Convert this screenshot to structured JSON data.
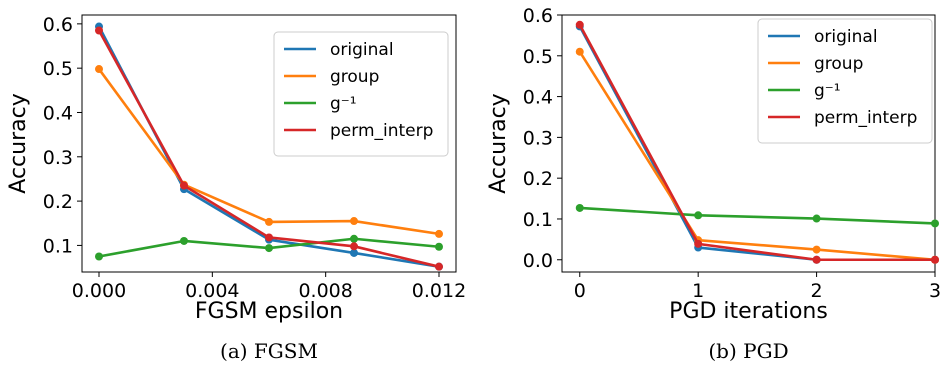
{
  "chart_data": [
    {
      "type": "line",
      "xlabel": "FGSM epsilon",
      "ylabel": "Accuracy",
      "caption": "(a) FGSM",
      "x": [
        0.0,
        0.003,
        0.006,
        0.009,
        0.012
      ],
      "xlim": [
        -0.0006,
        0.0126
      ],
      "ylim": [
        0.04,
        0.62
      ],
      "xticks": [
        0.0,
        0.004,
        0.008,
        0.012
      ],
      "xtick_labels": [
        "0.000",
        "0.004",
        "0.008",
        "0.012"
      ],
      "yticks": [
        0.1,
        0.2,
        0.3,
        0.4,
        0.5,
        0.6
      ],
      "ytick_labels": [
        "0.1",
        "0.2",
        "0.3",
        "0.4",
        "0.5",
        "0.6"
      ],
      "grid": false,
      "legend_position": "top-right",
      "series": [
        {
          "name": "original",
          "color": "#1f77b4",
          "values": [
            0.594,
            0.227,
            0.113,
            0.083,
            0.052
          ]
        },
        {
          "name": "group",
          "color": "#ff7f0e",
          "values": [
            0.498,
            0.237,
            0.153,
            0.155,
            0.126
          ]
        },
        {
          "name": "g⁻¹",
          "color": "#2ca02c",
          "values": [
            0.075,
            0.11,
            0.094,
            0.115,
            0.097
          ]
        },
        {
          "name": "perm_interp",
          "color": "#d62728",
          "values": [
            0.585,
            0.235,
            0.118,
            0.098,
            0.052
          ]
        }
      ]
    },
    {
      "type": "line",
      "xlabel": "PGD iterations",
      "ylabel": "Accuracy",
      "caption": "(b) PGD",
      "x": [
        0,
        1,
        2,
        3
      ],
      "xlim": [
        -0.15,
        3.0
      ],
      "ylim": [
        -0.03,
        0.6
      ],
      "xticks": [
        0,
        1,
        2,
        3
      ],
      "xtick_labels": [
        "0",
        "1",
        "2",
        "3"
      ],
      "yticks": [
        0.0,
        0.1,
        0.2,
        0.3,
        0.4,
        0.5,
        0.6
      ],
      "ytick_labels": [
        "0.0",
        "0.1",
        "0.2",
        "0.3",
        "0.4",
        "0.5",
        "0.6"
      ],
      "grid": false,
      "legend_position": "top-right",
      "series": [
        {
          "name": "original",
          "color": "#1f77b4",
          "values": [
            0.572,
            0.03,
            0.0,
            0.0
          ]
        },
        {
          "name": "group",
          "color": "#ff7f0e",
          "values": [
            0.51,
            0.048,
            0.025,
            0.0
          ]
        },
        {
          "name": "g⁻¹",
          "color": "#2ca02c",
          "values": [
            0.127,
            0.109,
            0.101,
            0.089
          ]
        },
        {
          "name": "perm_interp",
          "color": "#d62728",
          "values": [
            0.576,
            0.039,
            0.0,
            0.0
          ]
        }
      ]
    }
  ]
}
